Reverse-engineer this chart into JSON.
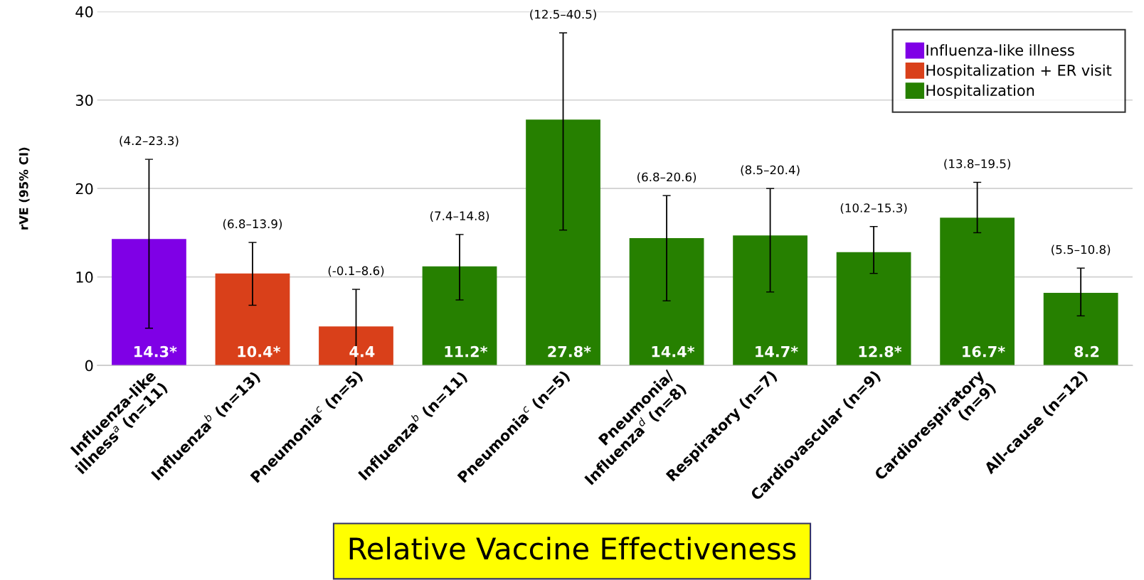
{
  "chart_data": {
    "type": "bar",
    "title": "Relative Vaccine Effectiveness",
    "ylabel": "rVE (95% CI)",
    "categories": [
      "Influenza-like\nillness$^{a}$ (n=11)",
      "Influenza$^{b}$ (n=13)",
      "Pneumonia$^{c}$ (n=5)",
      "Influenza$^{b}$ (n=11)",
      "Pneumonia$^{c}$ (n=5)",
      "Pneumonia/\nInfluenza$^{d}$ (n=8)",
      "Respiratory (n=7)",
      "Cardiovascular (n=9)",
      "Cardiorespiratory\n(n=9)",
      "All-cause (n=12)"
    ],
    "series": [
      {
        "name": "Influenza-like illness",
        "color": "#7f00e6",
        "values": [
          14.3,
          null,
          null,
          null,
          null,
          null,
          null,
          null,
          null,
          null
        ],
        "errors": [
          [
            4.2,
            23.3
          ],
          null,
          null,
          null,
          null,
          null,
          null,
          null,
          null,
          null
        ],
        "value_labels": [
          "14.3*",
          null,
          null,
          null,
          null,
          null,
          null,
          null,
          null,
          null
        ]
      },
      {
        "name": "Hospitalization + ER visit",
        "color": "#d9401a",
        "values": [
          null,
          10.4,
          4.4,
          null,
          null,
          null,
          null,
          null,
          null,
          null
        ],
        "errors": [
          null,
          [
            6.8,
            13.9
          ],
          [
            -0.1,
            8.6
          ],
          null,
          null,
          null,
          null,
          null,
          null,
          null
        ],
        "value_labels": [
          null,
          "10.4*",
          "4.4",
          null,
          null,
          null,
          null,
          null,
          null,
          null
        ]
      },
      {
        "name": "Hospitalization",
        "color": "#268000",
        "values": [
          null,
          null,
          null,
          11.2,
          27.8,
          14.4,
          14.7,
          12.8,
          16.7,
          8.2
        ],
        "errors": [
          null,
          null,
          null,
          [
            7.4,
            14.8
          ],
          [
            15.3,
            37.6
          ],
          [
            7.3,
            19.2
          ],
          [
            8.3,
            20.0
          ],
          [
            10.4,
            15.7
          ],
          [
            15.0,
            20.7
          ],
          [
            5.6,
            11.0
          ]
        ],
        "value_labels": [
          null,
          null,
          null,
          "11.2*",
          "27.8*",
          "14.4*",
          "14.7*",
          "12.8*",
          "16.7*",
          "8.2"
        ]
      }
    ],
    "annotations": [
      "(4.2–23.3)",
      "(6.8–13.9)",
      "(-0.1–8.6)",
      "(7.4–14.8)",
      "(12.5–40.5)",
      "(6.8–20.6)",
      "(8.5–20.4)",
      "(10.2–15.3)",
      "(13.8–19.5)",
      "(5.5–10.8)"
    ],
    "ylim": [
      0,
      40
    ],
    "yticks": [
      0,
      10,
      20,
      30,
      40
    ],
    "grid": "y",
    "legend": "top right"
  }
}
